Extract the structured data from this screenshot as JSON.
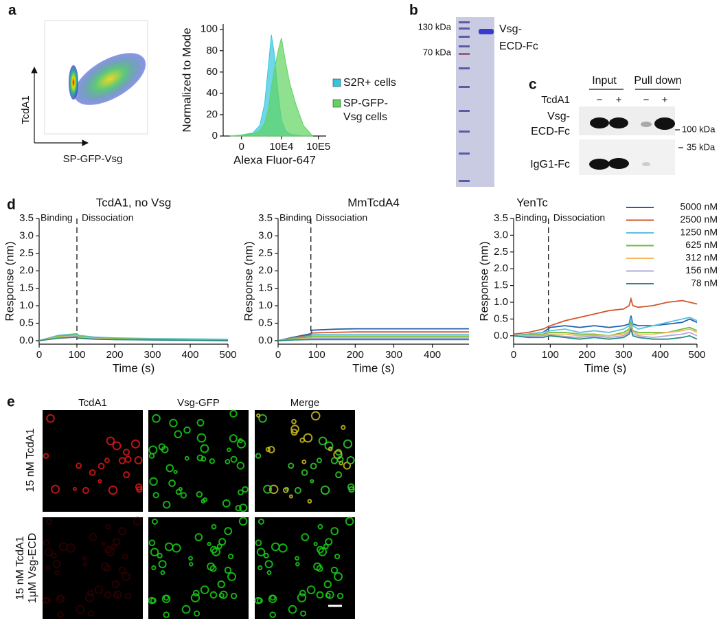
{
  "panel_labels": [
    "a",
    "b",
    "c",
    "d",
    "e"
  ],
  "flow_scatter": {
    "x_label": "SP-GFP-Vsg",
    "y_label": "TcdA1"
  },
  "gel": {
    "markers": [
      "130 kDa",
      "70 kDa"
    ],
    "band_label": [
      "Vsg-",
      "ECD-Fc"
    ]
  },
  "blot": {
    "columns": [
      "Input",
      "Pull down"
    ],
    "row_header": "TcdA1",
    "lanes": [
      "−",
      "+",
      "−",
      "+"
    ],
    "rows": [
      {
        "label": [
          "Vsg-",
          "ECD-Fc"
        ],
        "marker": "100 kDa"
      },
      {
        "label": [
          "IgG1-Fc"
        ],
        "marker": "35 kDa"
      }
    ]
  },
  "micrographs": {
    "columns": [
      "TcdA1",
      "Vsg-GFP",
      "Merge"
    ],
    "rows": [
      [
        "15 nM TcdA1"
      ],
      [
        "15 nM TcdA1",
        "1μM Vsg-ECD"
      ]
    ]
  },
  "chart_data": [
    {
      "type": "area",
      "x_label": "Alexa Fluor-647",
      "y_label": "Normalized to Mode",
      "xscale": "symlog",
      "legend": "right",
      "x": [
        -1000,
        0,
        1000,
        2000,
        3000,
        4000,
        5000,
        6000,
        8000,
        10000,
        13000,
        17000,
        25000,
        40000,
        70000
      ],
      "series": [
        {
          "name": "S2R+ cells",
          "color": "#33c6e0",
          "values": [
            0,
            1,
            3,
            10,
            30,
            65,
            95,
            80,
            40,
            15,
            5,
            2,
            1,
            0,
            0
          ]
        },
        {
          "name": "SP-GFP-Vsg cells",
          "color": "#5fd35f",
          "values": [
            0,
            1,
            2,
            5,
            12,
            25,
            45,
            60,
            80,
            92,
            70,
            50,
            30,
            10,
            0
          ]
        }
      ],
      "xlim": [
        -2000,
        160000
      ],
      "xticks": [
        0,
        {
          "value": 10000,
          "label": "10E4"
        },
        {
          "value": 100000,
          "label": "10E5"
        }
      ],
      "ylim": [
        0,
        105
      ],
      "yticks": [
        0,
        20,
        40,
        60,
        80,
        100
      ]
    },
    {
      "type": "line",
      "title": "TcdA1, no Vsg",
      "x_label": "Time (s)",
      "y_label": "Response (nm)",
      "annotations": [
        "Binding",
        "Dissociation"
      ],
      "vline": 100,
      "x": [
        0,
        50,
        100,
        105,
        150,
        200,
        300,
        400,
        500
      ],
      "series": [
        {
          "color": "#1f5fad",
          "values": [
            0,
            0.12,
            0.18,
            0.14,
            0.09,
            0.07,
            0.05,
            0.04,
            0.03
          ]
        },
        {
          "color": "#d2562a",
          "values": [
            0,
            0.11,
            0.17,
            0.12,
            0.07,
            0.05,
            0.03,
            0.02,
            0.01
          ]
        },
        {
          "color": "#5bc0de",
          "values": [
            0,
            0.15,
            0.2,
            0.15,
            0.1,
            0.08,
            0.06,
            0.05,
            0.04
          ]
        },
        {
          "color": "#6cbf3a",
          "values": [
            0,
            0.13,
            0.17,
            0.12,
            0.08,
            0.06,
            0.04,
            0.03,
            0.02
          ]
        },
        {
          "color": "#f4b860",
          "values": [
            0,
            0.1,
            0.14,
            0.1,
            0.06,
            0.04,
            0.03,
            0.02,
            0.01
          ]
        },
        {
          "color": "#b3a6e0",
          "values": [
            0,
            0.08,
            0.12,
            0.08,
            0.05,
            0.03,
            0.02,
            0.01,
            0.01
          ]
        },
        {
          "color": "#2a8a80",
          "values": [
            0,
            0.07,
            0.1,
            0.07,
            0.04,
            0.03,
            0.02,
            0.01,
            0.0
          ]
        }
      ],
      "xlim": [
        0,
        500
      ],
      "xticks": [
        0,
        100,
        200,
        300,
        400,
        500
      ],
      "ylim": [
        -0.1,
        3.5
      ],
      "yticks": [
        {
          "value": 0,
          "label": "0.0"
        },
        0.5,
        {
          "value": 1,
          "label": "1.0"
        },
        1.5,
        {
          "value": 2,
          "label": "2.0"
        },
        2.5,
        {
          "value": 3,
          "label": "3.0"
        },
        3.5
      ]
    },
    {
      "type": "line",
      "title": "MmTcdA4",
      "x_label": "Time (s)",
      "y_label": "Response (nm)",
      "annotations": [
        "Binding",
        "Dissociation"
      ],
      "vline": 85,
      "x": [
        0,
        40,
        85,
        88,
        150,
        200,
        300,
        400,
        495
      ],
      "series": [
        {
          "color": "#1f5fad",
          "values": [
            0,
            0.1,
            0.2,
            0.3,
            0.33,
            0.34,
            0.34,
            0.34,
            0.34
          ]
        },
        {
          "color": "#d2562a",
          "values": [
            0,
            0.08,
            0.16,
            0.22,
            0.24,
            0.25,
            0.25,
            0.25,
            0.25
          ]
        },
        {
          "color": "#5bc0de",
          "values": [
            0,
            0.07,
            0.13,
            0.17,
            0.18,
            0.18,
            0.18,
            0.18,
            0.18
          ]
        },
        {
          "color": "#6cbf3a",
          "values": [
            0,
            0.06,
            0.11,
            0.13,
            0.13,
            0.13,
            0.13,
            0.13,
            0.13
          ]
        },
        {
          "color": "#f4b860",
          "values": [
            0,
            0.04,
            0.07,
            0.09,
            0.09,
            0.09,
            0.09,
            0.09,
            0.09
          ]
        },
        {
          "color": "#b3a6e0",
          "values": [
            0,
            0.03,
            0.05,
            0.06,
            0.06,
            0.06,
            0.06,
            0.06,
            0.06
          ]
        },
        {
          "color": "#2a8a80",
          "values": [
            0,
            0.02,
            0.03,
            0.03,
            0.03,
            0.03,
            0.03,
            0.03,
            0.03
          ]
        }
      ],
      "xlim": [
        0,
        495
      ],
      "xticks": [
        0,
        100,
        200,
        300,
        400
      ],
      "ylim": [
        -0.1,
        3.5
      ],
      "yticks": [
        {
          "value": 0,
          "label": "0.0"
        },
        0.5,
        {
          "value": 1,
          "label": "1.0"
        },
        1.5,
        {
          "value": 2,
          "label": "2.0"
        },
        2.5,
        {
          "value": 3,
          "label": "3.0"
        },
        3.5
      ]
    },
    {
      "type": "line",
      "title": "YenTc",
      "x_label": "Time (s)",
      "y_label": "Response (nm)",
      "annotations": [
        "Binding",
        "Dissociation"
      ],
      "vline": 95,
      "legend": "upper right",
      "x": [
        0,
        40,
        80,
        100,
        140,
        180,
        220,
        260,
        300,
        315,
        320,
        325,
        340,
        380,
        420,
        460,
        480,
        500
      ],
      "series": [
        {
          "name": "5000 nM",
          "color": "#1f5fad",
          "values": [
            0,
            0.05,
            0.1,
            0.25,
            0.3,
            0.25,
            0.3,
            0.25,
            0.3,
            0.35,
            0.6,
            0.35,
            0.3,
            0.3,
            0.35,
            0.4,
            0.5,
            0.4
          ]
        },
        {
          "name": "2500 nM",
          "color": "#d2562a",
          "values": [
            0.05,
            0.1,
            0.2,
            0.3,
            0.45,
            0.55,
            0.65,
            0.75,
            0.8,
            0.9,
            1.1,
            0.9,
            0.85,
            0.9,
            1.0,
            1.05,
            1.0,
            0.95
          ]
        },
        {
          "name": "1250 nM",
          "color": "#5bc0de",
          "values": [
            0,
            0.05,
            0.1,
            0.15,
            0.2,
            0.1,
            0.15,
            0.1,
            0.2,
            0.3,
            0.5,
            0.3,
            0.2,
            0.3,
            0.4,
            0.5,
            0.55,
            0.45
          ]
        },
        {
          "name": "625 nM",
          "color": "#6cbf3a",
          "values": [
            0,
            0.02,
            0.05,
            0.1,
            0.1,
            0.05,
            0.05,
            0.0,
            0.1,
            0.2,
            0.4,
            0.15,
            0.1,
            0.1,
            0.1,
            0.2,
            0.25,
            0.15
          ]
        },
        {
          "name": "312 nM",
          "color": "#f4b860",
          "values": [
            0,
            0,
            0.02,
            0.05,
            0.05,
            0,
            0.02,
            0,
            0.05,
            0.15,
            0.3,
            0.1,
            0.05,
            0.05,
            0.1,
            0.15,
            0.2,
            0.1
          ]
        },
        {
          "name": "156 nM",
          "color": "#b3a6e0",
          "values": [
            0,
            -0.02,
            0,
            0.02,
            -0.02,
            -0.05,
            0,
            -0.05,
            0,
            0.1,
            0.25,
            0.05,
            0,
            -0.05,
            0,
            0.05,
            0.1,
            0
          ]
        },
        {
          "name": "78 nM",
          "color": "#2a8a80",
          "values": [
            0,
            -0.05,
            -0.05,
            0,
            -0.05,
            -0.1,
            -0.05,
            -0.1,
            -0.05,
            0.05,
            0.2,
            0,
            -0.05,
            -0.1,
            -0.1,
            -0.05,
            0,
            -0.1
          ]
        }
      ],
      "xlim": [
        0,
        500
      ],
      "xticks": [
        0,
        100,
        200,
        300,
        400,
        500
      ],
      "ylim": [
        -0.25,
        3.5
      ],
      "yticks": [
        {
          "value": 0,
          "label": "0.0"
        },
        0.5,
        {
          "value": 1,
          "label": "1.0"
        },
        1.5,
        {
          "value": 2,
          "label": "2.0"
        },
        2.5,
        {
          "value": 3,
          "label": "3.0"
        },
        3.5
      ]
    }
  ]
}
